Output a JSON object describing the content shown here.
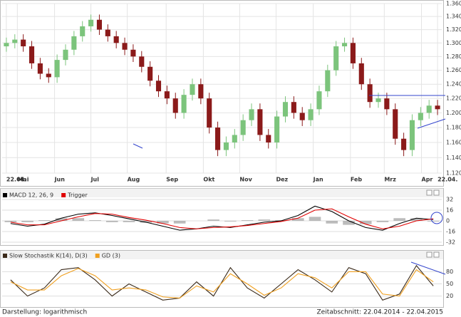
{
  "chart_data": [
    {
      "type": "candlestick",
      "log_scale": true,
      "grid": true,
      "up_color": "#7cc47c",
      "down_color": "#8b1a1a",
      "open": [
        1.295,
        1.3,
        1.305,
        1.295,
        1.27,
        1.255,
        1.25,
        1.275,
        1.29,
        1.31,
        1.325,
        1.335,
        1.32,
        1.31,
        1.3,
        1.29,
        1.28,
        1.265,
        1.245,
        1.23,
        1.22,
        1.2,
        1.225,
        1.24,
        1.22,
        1.18,
        1.15,
        1.16,
        1.17,
        1.19,
        1.205,
        1.17,
        1.16,
        1.195,
        1.215,
        1.2,
        1.19,
        1.205,
        1.23,
        1.26,
        1.295,
        1.3,
        1.27,
        1.24,
        1.215,
        1.22,
        1.205,
        1.165,
        1.15,
        1.19,
        1.2,
        1.21
      ],
      "high": [
        1.308,
        1.313,
        1.313,
        1.303,
        1.278,
        1.263,
        1.283,
        1.298,
        1.318,
        1.333,
        1.343,
        1.343,
        1.328,
        1.318,
        1.308,
        1.298,
        1.288,
        1.273,
        1.253,
        1.238,
        1.228,
        1.233,
        1.248,
        1.248,
        1.228,
        1.188,
        1.168,
        1.178,
        1.198,
        1.213,
        1.213,
        1.178,
        1.203,
        1.223,
        1.223,
        1.208,
        1.213,
        1.238,
        1.268,
        1.303,
        1.308,
        1.308,
        1.278,
        1.248,
        1.228,
        1.228,
        1.213,
        1.173,
        1.198,
        1.208,
        1.218,
        1.218
      ],
      "low": [
        1.287,
        1.292,
        1.287,
        1.262,
        1.247,
        1.242,
        1.242,
        1.267,
        1.282,
        1.302,
        1.317,
        1.312,
        1.302,
        1.292,
        1.282,
        1.272,
        1.257,
        1.237,
        1.222,
        1.212,
        1.192,
        1.192,
        1.217,
        1.212,
        1.172,
        1.142,
        1.142,
        1.152,
        1.162,
        1.182,
        1.162,
        1.152,
        1.152,
        1.187,
        1.192,
        1.182,
        1.182,
        1.197,
        1.222,
        1.252,
        1.287,
        1.262,
        1.232,
        1.207,
        1.207,
        1.197,
        1.157,
        1.142,
        1.142,
        1.182,
        1.192,
        1.197
      ],
      "close": [
        1.3,
        1.305,
        1.295,
        1.27,
        1.255,
        1.25,
        1.275,
        1.29,
        1.31,
        1.325,
        1.335,
        1.32,
        1.31,
        1.3,
        1.29,
        1.28,
        1.265,
        1.245,
        1.23,
        1.22,
        1.2,
        1.225,
        1.24,
        1.22,
        1.18,
        1.15,
        1.16,
        1.17,
        1.19,
        1.205,
        1.17,
        1.16,
        1.195,
        1.215,
        1.2,
        1.19,
        1.205,
        1.23,
        1.26,
        1.295,
        1.3,
        1.27,
        1.24,
        1.215,
        1.22,
        1.205,
        1.165,
        1.15,
        1.19,
        1.2,
        1.21,
        1.205
      ],
      "ylim": [
        1.12,
        1.36
      ],
      "yticks": [
        {
          "value": 1.12,
          "label": "1.120"
        },
        {
          "value": 1.14,
          "label": "1.140"
        },
        {
          "value": 1.16,
          "label": "1.160"
        },
        {
          "value": 1.18,
          "label": "1.180"
        },
        {
          "value": 1.2,
          "label": "1.200"
        },
        {
          "value": 1.22,
          "label": "1.220"
        },
        {
          "value": 1.24,
          "label": "1.240"
        },
        {
          "value": 1.26,
          "label": "1.260"
        },
        {
          "value": 1.28,
          "label": "1.280"
        },
        {
          "value": 1.3,
          "label": "1.300"
        },
        {
          "value": 1.32,
          "label": "1.320"
        },
        {
          "value": 1.34,
          "label": "1.340"
        },
        {
          "value": 1.36,
          "label": "1.360"
        }
      ],
      "xticks": [
        {
          "value": 0,
          "label": "22.04."
        },
        {
          "value": 1.3,
          "label": "Mai"
        },
        {
          "value": 5.7,
          "label": "Jun"
        },
        {
          "value": 10,
          "label": "Jul"
        },
        {
          "value": 14.3,
          "label": "Aug"
        },
        {
          "value": 18.9,
          "label": "Sep"
        },
        {
          "value": 23.3,
          "label": "Okt"
        },
        {
          "value": 27.6,
          "label": "Nov"
        },
        {
          "value": 31.9,
          "label": "Dez"
        },
        {
          "value": 36.3,
          "label": "Jan"
        },
        {
          "value": 40.7,
          "label": "Feb"
        },
        {
          "value": 44.7,
          "label": "Mrz"
        },
        {
          "value": 49.1,
          "label": "Apr"
        },
        {
          "value": 51,
          "label": "22.04."
        }
      ]
    },
    {
      "type": "line",
      "series": [
        {
          "color": "#a0a0a0",
          "style": "bars",
          "values": [
            -2,
            -2,
            1,
            4,
            4,
            1,
            -2,
            -2,
            -3,
            -4,
            -4,
            0,
            2,
            -1,
            1,
            2,
            1,
            4,
            6,
            -4,
            -6,
            -5,
            -2,
            4,
            4,
            -1
          ]
        },
        {
          "name": "MACD 12, 26, 9",
          "color": "#000000",
          "values": [
            -4,
            -8,
            -5,
            4,
            10,
            12,
            8,
            3,
            -2,
            -8,
            -14,
            -12,
            -8,
            -10,
            -6,
            -2,
            0,
            8,
            22,
            14,
            0,
            -10,
            -14,
            -4,
            4,
            2
          ]
        },
        {
          "name": "Trigger",
          "color": "#e00000",
          "values": [
            -2,
            -6,
            -6,
            0,
            6,
            11,
            10,
            5,
            1,
            -4,
            -10,
            -12,
            -10,
            -9,
            -7,
            -4,
            -1,
            4,
            16,
            18,
            6,
            -5,
            -12,
            -8,
            0,
            3
          ]
        }
      ],
      "ylim": [
        -32,
        32
      ],
      "yticks": [
        32,
        16,
        0,
        -16,
        -32
      ]
    },
    {
      "type": "line",
      "series": [
        {
          "name": "Slow Stochastik K(14), D(3)",
          "color": "#3a2a1a",
          "values": [
            60,
            20,
            40,
            85,
            90,
            60,
            20,
            50,
            30,
            10,
            15,
            55,
            20,
            90,
            40,
            15,
            50,
            85,
            60,
            30,
            90,
            75,
            10,
            25,
            95,
            45
          ]
        },
        {
          "name": "GD (3)",
          "color": "#f0a020",
          "values": [
            55,
            35,
            35,
            70,
            88,
            70,
            35,
            40,
            35,
            18,
            15,
            45,
            30,
            75,
            50,
            22,
            40,
            75,
            65,
            40,
            80,
            80,
            25,
            20,
            85,
            55
          ]
        }
      ],
      "ylim": [
        0,
        100
      ],
      "yticks": [
        80,
        50,
        20
      ]
    }
  ],
  "footer": {
    "left": "Darstellung: logarithmisch",
    "right": "Zeitabschnitt: 22.04.2014 - 22.04.2015"
  }
}
